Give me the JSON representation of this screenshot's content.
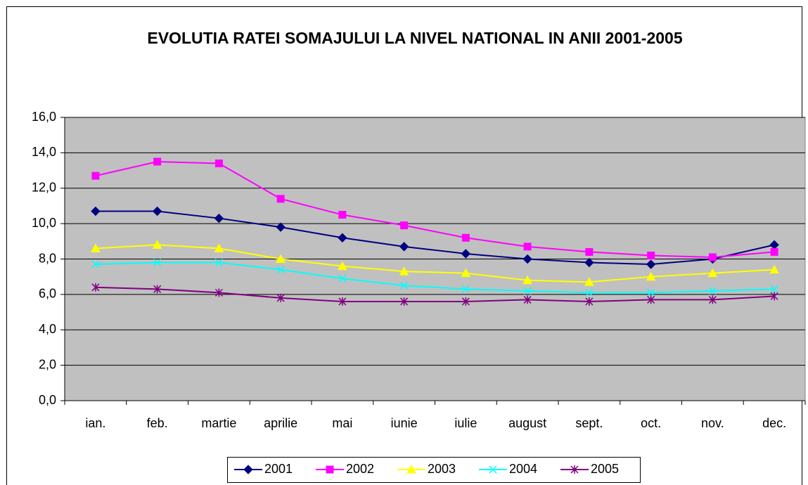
{
  "chart_data": {
    "type": "line",
    "title": "EVOLUTIA RATEI SOMAJULUI LA NIVEL NATIONAL IN ANII 2001-2005",
    "categories": [
      "ian.",
      "feb.",
      "martie",
      "aprilie",
      "mai",
      "iunie",
      "iulie",
      "august",
      "sept.",
      "oct.",
      "nov.",
      "dec."
    ],
    "series": [
      {
        "name": "2001",
        "color": "#000080",
        "marker": "diamond",
        "values": [
          10.7,
          10.7,
          10.3,
          9.8,
          9.2,
          8.7,
          8.3,
          8.0,
          7.8,
          7.7,
          8.0,
          8.8
        ]
      },
      {
        "name": "2002",
        "color": "#FF00FF",
        "marker": "square",
        "values": [
          12.7,
          13.5,
          13.4,
          11.4,
          10.5,
          9.9,
          9.2,
          8.7,
          8.4,
          8.2,
          8.1,
          8.4
        ]
      },
      {
        "name": "2003",
        "color": "#FFFF00",
        "marker": "triangle",
        "values": [
          8.6,
          8.8,
          8.6,
          8.0,
          7.6,
          7.3,
          7.2,
          6.8,
          6.7,
          7.0,
          7.2,
          7.4
        ]
      },
      {
        "name": "2004",
        "color": "#00FFFF",
        "marker": "x",
        "values": [
          7.7,
          7.8,
          7.8,
          7.4,
          6.9,
          6.5,
          6.3,
          6.2,
          6.1,
          6.1,
          6.2,
          6.3
        ]
      },
      {
        "name": "2005",
        "color": "#800080",
        "marker": "star",
        "values": [
          6.4,
          6.3,
          6.1,
          5.8,
          5.6,
          5.6,
          5.6,
          5.7,
          5.6,
          5.7,
          5.7,
          5.9
        ]
      }
    ],
    "ylim": [
      0,
      16
    ],
    "yticks": [
      {
        "value": 0,
        "label": "0,0"
      },
      {
        "value": 2,
        "label": "2,0"
      },
      {
        "value": 4,
        "label": "4,0"
      },
      {
        "value": 6,
        "label": "6,0"
      },
      {
        "value": 8,
        "label": "8,0"
      },
      {
        "value": 10,
        "label": "10,0"
      },
      {
        "value": 12,
        "label": "12,0"
      },
      {
        "value": 14,
        "label": "14,0"
      },
      {
        "value": 16,
        "label": "16,0"
      }
    ],
    "grid": true,
    "legend": "bottom"
  }
}
